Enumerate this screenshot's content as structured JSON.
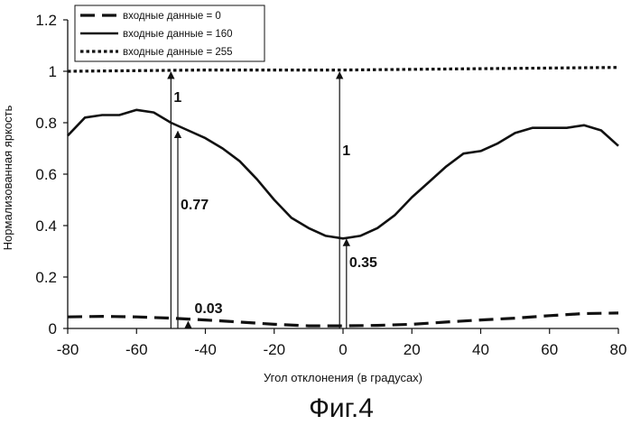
{
  "chart_data": {
    "type": "line",
    "title": "",
    "xlabel": "Угол отклонения (в градусах)",
    "ylabel": "Нормализованная яркость",
    "xlim": [
      -80,
      80
    ],
    "ylim": [
      0,
      1.2
    ],
    "x_ticks": [
      -80,
      -60,
      -40,
      -20,
      0,
      20,
      40,
      60,
      80
    ],
    "x_tick_labels": [
      "-80",
      "-60",
      "-40",
      "-20",
      "0",
      "20",
      "40",
      "60",
      "80"
    ],
    "y_ticks": [
      0,
      0.2,
      0.4,
      0.6,
      0.8,
      1,
      1.2
    ],
    "y_tick_labels": [
      "0",
      "0.2",
      "0.4",
      "0.6",
      "0.8",
      "1",
      "1.2"
    ],
    "grid": false,
    "legend_position": "top-left",
    "series": [
      {
        "name": "входные данные = 0",
        "style": "dashed",
        "x": [
          -80,
          -70,
          -60,
          -50,
          -40,
          -30,
          -20,
          -10,
          0,
          10,
          20,
          30,
          40,
          50,
          60,
          70,
          80
        ],
        "y": [
          0.045,
          0.047,
          0.045,
          0.04,
          0.033,
          0.025,
          0.016,
          0.01,
          0.01,
          0.012,
          0.016,
          0.025,
          0.033,
          0.04,
          0.05,
          0.058,
          0.06
        ]
      },
      {
        "name": "входные данные = 160",
        "style": "solid",
        "x": [
          -80,
          -75,
          -70,
          -65,
          -60,
          -55,
          -50,
          -45,
          -40,
          -35,
          -30,
          -25,
          -20,
          -15,
          -10,
          -5,
          0,
          5,
          10,
          15,
          20,
          25,
          30,
          35,
          40,
          45,
          50,
          55,
          60,
          65,
          70,
          75,
          80
        ],
        "y": [
          0.75,
          0.82,
          0.83,
          0.83,
          0.85,
          0.84,
          0.8,
          0.77,
          0.74,
          0.7,
          0.65,
          0.58,
          0.5,
          0.43,
          0.39,
          0.36,
          0.35,
          0.36,
          0.39,
          0.44,
          0.51,
          0.57,
          0.63,
          0.68,
          0.69,
          0.72,
          0.76,
          0.78,
          0.78,
          0.78,
          0.79,
          0.77,
          0.71
        ]
      },
      {
        "name": "входные данные = 255",
        "style": "dotted",
        "x": [
          -80,
          -40,
          0,
          40,
          80
        ],
        "y": [
          1.0,
          1.005,
          1.005,
          1.01,
          1.015
        ]
      }
    ],
    "annotations": [
      {
        "label": "1",
        "x": -50,
        "from": 0,
        "to": 1
      },
      {
        "label": "0.77",
        "x": -48,
        "from": 0,
        "to": 0.77
      },
      {
        "label": "0.03",
        "x": -45,
        "from": 0,
        "to": 0.03
      },
      {
        "label": "1",
        "x": -1,
        "from": 0,
        "to": 1
      },
      {
        "label": "0.35",
        "x": 1,
        "from": 0,
        "to": 0.35
      }
    ],
    "caption": "Фиг.4"
  }
}
